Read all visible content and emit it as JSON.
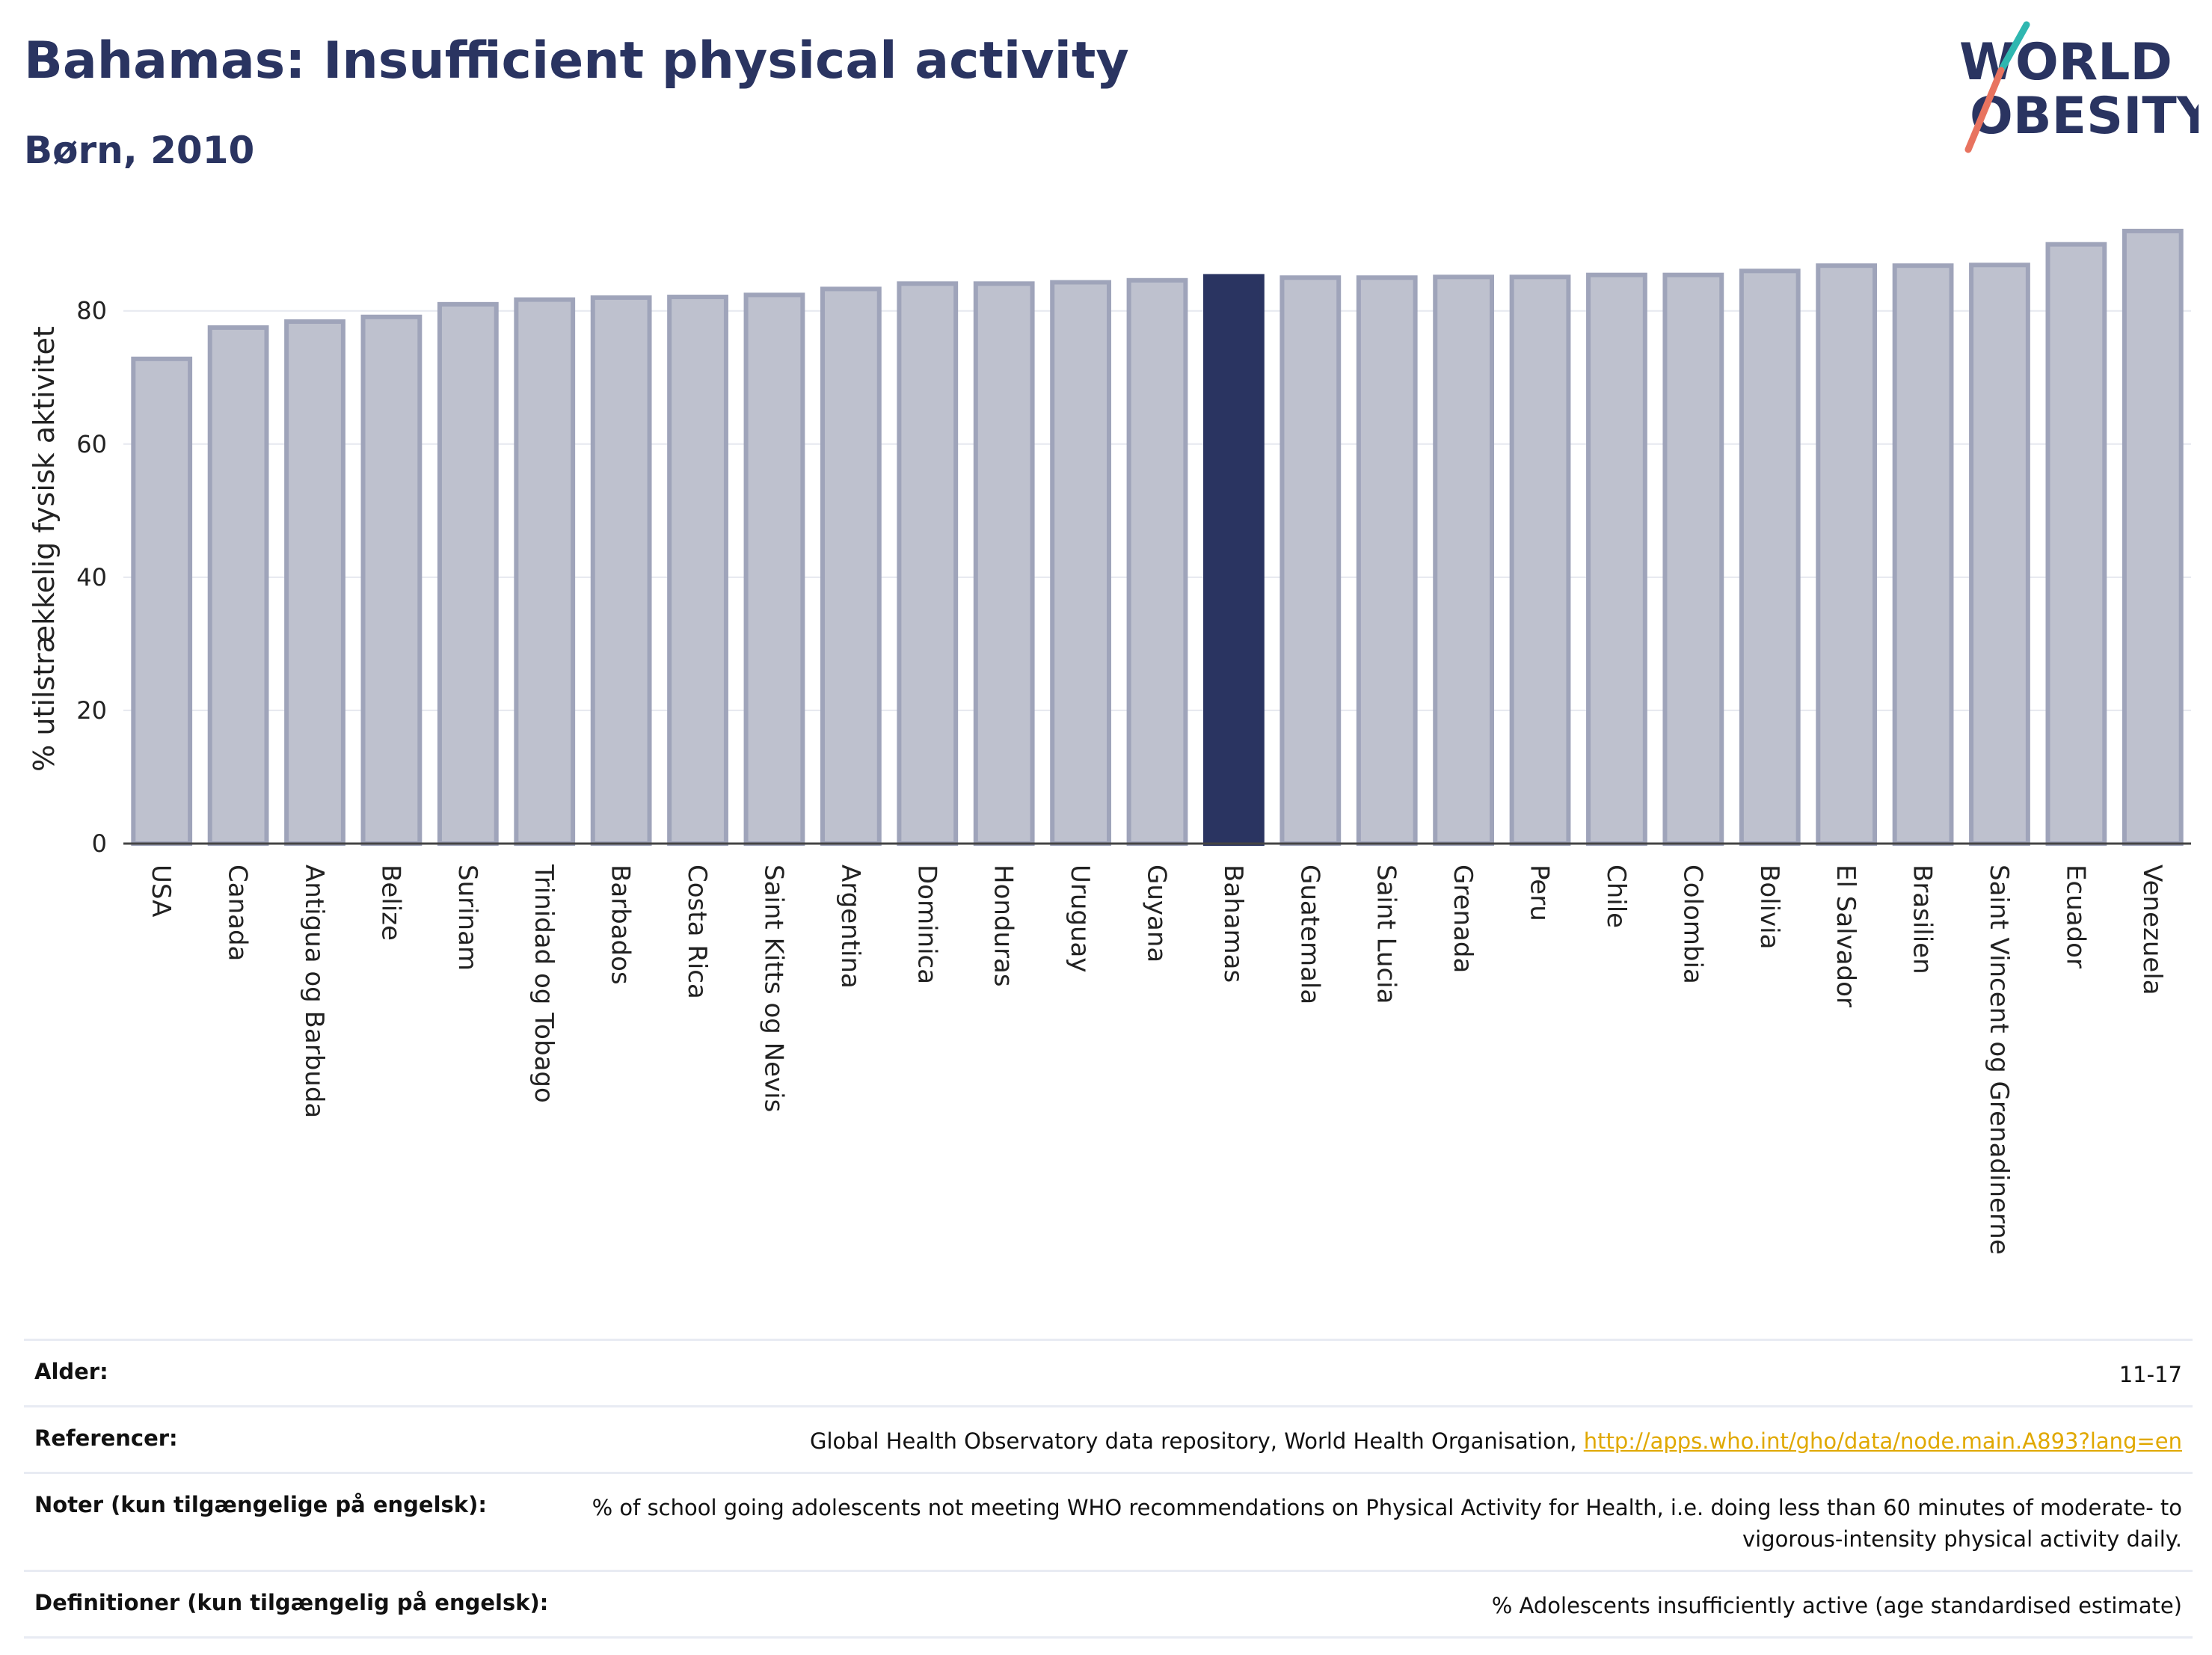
{
  "header": {
    "title": "Bahamas: Insufficient physical activity",
    "subtitle": "Børn, 2010"
  },
  "logo": {
    "line1": "WORLD",
    "line2": "OBESITY"
  },
  "chart_data": {
    "type": "bar",
    "ylabel": "% utilstrækkelig fysisk aktivitet",
    "ylim": [
      0,
      93
    ],
    "yticks": [
      0,
      20,
      40,
      60,
      80
    ],
    "grid": true,
    "highlight": "Bahamas",
    "highlight_color": "#2a3461",
    "bar_color": "#bec1ce",
    "bar_edge_color": "#9fa4ba",
    "categories": [
      "USA",
      "Canada",
      "Antigua og Barbuda",
      "Belize",
      "Surinam",
      "Trinidad og Tobago",
      "Barbados",
      "Costa Rica",
      "Saint Kitts og Nevis",
      "Argentina",
      "Dominica",
      "Honduras",
      "Uruguay",
      "Guyana",
      "Bahamas",
      "Guatemala",
      "Saint Lucia",
      "Grenada",
      "Peru",
      "Chile",
      "Colombia",
      "Bolivia",
      "El Salvador",
      "Brasilien",
      "Saint Vincent og Grenadinerne",
      "Ecuador",
      "Venezuela"
    ],
    "values": [
      72.8,
      77.5,
      78.4,
      79.1,
      81.0,
      81.7,
      82.0,
      82.1,
      82.4,
      83.3,
      84.1,
      84.1,
      84.3,
      84.6,
      85.2,
      85.0,
      85.0,
      85.1,
      85.1,
      85.4,
      85.4,
      86.0,
      86.8,
      86.8,
      86.9,
      90.0,
      92.0
    ]
  },
  "info": {
    "rows": [
      {
        "label": "Alder:",
        "value": "11-17"
      },
      {
        "label": "Referencer:",
        "value": "Global Health Observatory data repository, World Health Organisation, ",
        "link": "http://apps.who.int/gho/data/node.main.A893?lang=en"
      },
      {
        "label": "Noter (kun tilgængelige på engelsk):",
        "value": "% of school going adolescents not meeting WHO recommendations on Physical Activity for Health, i.e. doing less than 60 minutes of moderate- to vigorous-intensity physical activity daily."
      },
      {
        "label": "Definitioner (kun tilgængelig på engelsk):",
        "value": "% Adolescents insufficiently active (age standardised estimate)"
      }
    ]
  }
}
